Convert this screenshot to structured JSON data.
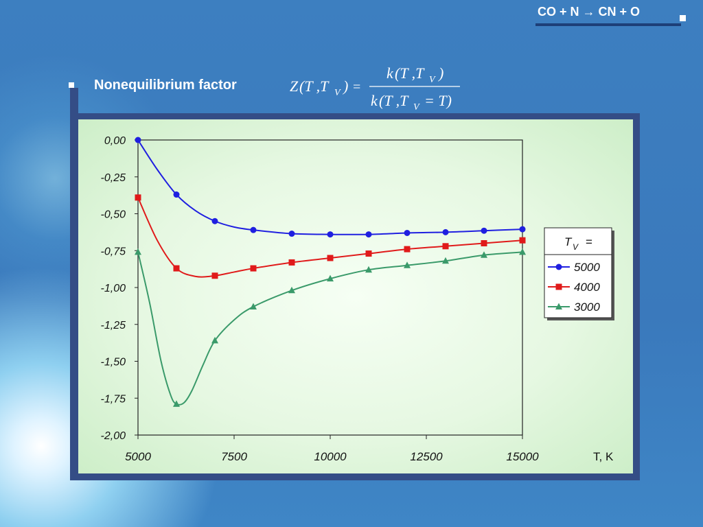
{
  "header": {
    "reaction": "CO + N → CN + O"
  },
  "heading": {
    "label": "Nonequilibrium factor"
  },
  "formula": {
    "lhs_Z": "Z",
    "lhs_args": "(T ,T",
    "lhs_sub": "V",
    "lhs_close": ")",
    "equals": "=",
    "num_k": "k",
    "num_args": "(T ,T",
    "num_sub": "V",
    "num_close": ")",
    "den_k": "k",
    "den_args": "(T ,T",
    "den_sub": "V",
    "den_tail": "= T)"
  },
  "chart_data": {
    "type": "line",
    "x": [
      5000,
      6000,
      7000,
      8000,
      9000,
      10000,
      11000,
      12000,
      13000,
      14000,
      15000
    ],
    "xlim": [
      5000,
      15000
    ],
    "ylim": [
      -2.0,
      0.0
    ],
    "xticks": [
      5000,
      7500,
      10000,
      12500,
      15000
    ],
    "xtick_labels": [
      "5000",
      "7500",
      "10000",
      "12500",
      "15000"
    ],
    "yticks": [
      0.0,
      -0.25,
      -0.5,
      -0.75,
      -1.0,
      -1.25,
      -1.5,
      -1.75,
      -2.0
    ],
    "ytick_labels": [
      "0,00",
      "-0,25",
      "-0,50",
      "-0,75",
      "-1,00",
      "-1,25",
      "-1,50",
      "-1,75",
      "-2,00"
    ],
    "xlabel": "T, K",
    "legend_title_T": "T",
    "legend_title_sub": "V",
    "legend_title_eq": "=",
    "legend_position": "right",
    "grid": false,
    "series": [
      {
        "name": "5000",
        "color": "#1f1fe0",
        "marker": "circle",
        "values": [
          0.0,
          -0.37,
          -0.55,
          -0.61,
          -0.635,
          -0.64,
          -0.64,
          -0.63,
          -0.625,
          -0.615,
          -0.605
        ],
        "curve": [
          [
            5000,
            0.0
          ],
          [
            5500,
            -0.2
          ],
          [
            6000,
            -0.37
          ],
          [
            6500,
            -0.48
          ],
          [
            7000,
            -0.55
          ],
          [
            7500,
            -0.59
          ],
          [
            8000,
            -0.61
          ],
          [
            9000,
            -0.635
          ],
          [
            10000,
            -0.64
          ],
          [
            11000,
            -0.64
          ],
          [
            12000,
            -0.63
          ],
          [
            13000,
            -0.625
          ],
          [
            14000,
            -0.615
          ],
          [
            15000,
            -0.605
          ]
        ]
      },
      {
        "name": "4000",
        "color": "#e01a1a",
        "marker": "square",
        "values": [
          -0.39,
          -0.87,
          -0.92,
          -0.87,
          -0.83,
          -0.8,
          -0.77,
          -0.74,
          -0.72,
          -0.7,
          -0.68
        ],
        "curve": [
          [
            5000,
            -0.39
          ],
          [
            5500,
            -0.68
          ],
          [
            6000,
            -0.87
          ],
          [
            6500,
            -0.925
          ],
          [
            7000,
            -0.92
          ],
          [
            7500,
            -0.895
          ],
          [
            8000,
            -0.87
          ],
          [
            9000,
            -0.83
          ],
          [
            10000,
            -0.8
          ],
          [
            11000,
            -0.77
          ],
          [
            12000,
            -0.74
          ],
          [
            13000,
            -0.72
          ],
          [
            14000,
            -0.7
          ],
          [
            15000,
            -0.68
          ]
        ]
      },
      {
        "name": "3000",
        "color": "#3a9a6a",
        "marker": "triangle",
        "values": [
          -0.76,
          -1.79,
          -1.36,
          -1.13,
          -1.02,
          -0.94,
          -0.88,
          -0.85,
          -0.82,
          -0.78,
          -0.76
        ],
        "curve": [
          [
            5000,
            -0.76
          ],
          [
            5300,
            -1.1
          ],
          [
            5600,
            -1.5
          ],
          [
            5850,
            -1.73
          ],
          [
            6000,
            -1.79
          ],
          [
            6200,
            -1.78
          ],
          [
            6400,
            -1.7
          ],
          [
            6700,
            -1.52
          ],
          [
            7000,
            -1.36
          ],
          [
            7500,
            -1.22
          ],
          [
            8000,
            -1.13
          ],
          [
            9000,
            -1.02
          ],
          [
            10000,
            -0.94
          ],
          [
            11000,
            -0.88
          ],
          [
            12000,
            -0.85
          ],
          [
            13000,
            -0.82
          ],
          [
            14000,
            -0.78
          ],
          [
            15000,
            -0.76
          ]
        ]
      }
    ]
  }
}
